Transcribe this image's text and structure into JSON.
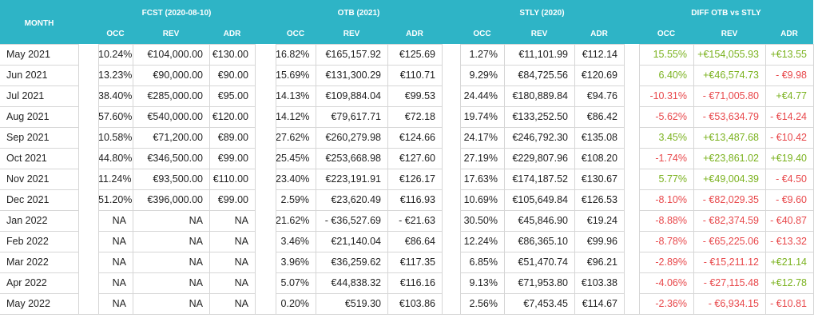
{
  "headers": {
    "month": "MONTH",
    "groups": [
      "FCST (2020-08-10)",
      "OTB (2021)",
      "STLY (2020)",
      "DIFF OTB vs STLY"
    ],
    "sub": [
      "OCC",
      "REV",
      "ADR"
    ]
  },
  "rows": [
    {
      "month": "May 2021",
      "fcst": [
        "10.24%",
        "€104,000.00",
        "€130.00"
      ],
      "otb": [
        "16.82%",
        "€165,157.92",
        "€125.69"
      ],
      "stly": [
        "1.27%",
        "€11,101.99",
        "€112.14"
      ],
      "diff": [
        "15.55%",
        "+€154,055.93",
        "+€13.55"
      ],
      "diff_sign": [
        "pos",
        "pos",
        "pos"
      ]
    },
    {
      "month": "Jun 2021",
      "fcst": [
        "13.23%",
        "€90,000.00",
        "€90.00"
      ],
      "otb": [
        "15.69%",
        "€131,300.29",
        "€110.71"
      ],
      "stly": [
        "9.29%",
        "€84,725.56",
        "€120.69"
      ],
      "diff": [
        "6.40%",
        "+€46,574.73",
        "- €9.98"
      ],
      "diff_sign": [
        "pos",
        "pos",
        "neg"
      ]
    },
    {
      "month": "Jul 2021",
      "fcst": [
        "38.40%",
        "€285,000.00",
        "€95.00"
      ],
      "otb": [
        "14.13%",
        "€109,884.04",
        "€99.53"
      ],
      "stly": [
        "24.44%",
        "€180,889.84",
        "€94.76"
      ],
      "diff": [
        "-10.31%",
        "- €71,005.80",
        "+€4.77"
      ],
      "diff_sign": [
        "neg",
        "neg",
        "pos"
      ]
    },
    {
      "month": "Aug 2021",
      "fcst": [
        "57.60%",
        "€540,000.00",
        "€120.00"
      ],
      "otb": [
        "14.12%",
        "€79,617.71",
        "€72.18"
      ],
      "stly": [
        "19.74%",
        "€133,252.50",
        "€86.42"
      ],
      "diff": [
        "-5.62%",
        "- €53,634.79",
        "- €14.24"
      ],
      "diff_sign": [
        "neg",
        "neg",
        "neg"
      ]
    },
    {
      "month": "Sep 2021",
      "fcst": [
        "10.58%",
        "€71,200.00",
        "€89.00"
      ],
      "otb": [
        "27.62%",
        "€260,279.98",
        "€124.66"
      ],
      "stly": [
        "24.17%",
        "€246,792.30",
        "€135.08"
      ],
      "diff": [
        "3.45%",
        "+€13,487.68",
        "- €10.42"
      ],
      "diff_sign": [
        "pos",
        "pos",
        "neg"
      ]
    },
    {
      "month": "Oct 2021",
      "fcst": [
        "44.80%",
        "€346,500.00",
        "€99.00"
      ],
      "otb": [
        "25.45%",
        "€253,668.98",
        "€127.60"
      ],
      "stly": [
        "27.19%",
        "€229,807.96",
        "€108.20"
      ],
      "diff": [
        "-1.74%",
        "+€23,861.02",
        "+€19.40"
      ],
      "diff_sign": [
        "neg",
        "pos",
        "pos"
      ]
    },
    {
      "month": "Nov 2021",
      "fcst": [
        "11.24%",
        "€93,500.00",
        "€110.00"
      ],
      "otb": [
        "23.40%",
        "€223,191.91",
        "€126.17"
      ],
      "stly": [
        "17.63%",
        "€174,187.52",
        "€130.67"
      ],
      "diff": [
        "5.77%",
        "+€49,004.39",
        "- €4.50"
      ],
      "diff_sign": [
        "pos",
        "pos",
        "neg"
      ]
    },
    {
      "month": "Dec 2021",
      "fcst": [
        "51.20%",
        "€396,000.00",
        "€99.00"
      ],
      "otb": [
        "2.59%",
        "€23,620.49",
        "€116.93"
      ],
      "stly": [
        "10.69%",
        "€105,649.84",
        "€126.53"
      ],
      "diff": [
        "-8.10%",
        "- €82,029.35",
        "- €9.60"
      ],
      "diff_sign": [
        "neg",
        "neg",
        "neg"
      ]
    },
    {
      "month": "Jan 2022",
      "fcst": [
        "NA",
        "NA",
        "NA"
      ],
      "otb": [
        "21.62%",
        "- €36,527.69",
        "- €21.63"
      ],
      "stly": [
        "30.50%",
        "€45,846.90",
        "€19.24"
      ],
      "diff": [
        "-8.88%",
        "- €82,374.59",
        "- €40.87"
      ],
      "diff_sign": [
        "neg",
        "neg",
        "neg"
      ]
    },
    {
      "month": "Feb 2022",
      "fcst": [
        "NA",
        "NA",
        "NA"
      ],
      "otb": [
        "3.46%",
        "€21,140.04",
        "€86.64"
      ],
      "stly": [
        "12.24%",
        "€86,365.10",
        "€99.96"
      ],
      "diff": [
        "-8.78%",
        "- €65,225.06",
        "- €13.32"
      ],
      "diff_sign": [
        "neg",
        "neg",
        "neg"
      ]
    },
    {
      "month": "Mar 2022",
      "fcst": [
        "NA",
        "NA",
        "NA"
      ],
      "otb": [
        "3.96%",
        "€36,259.62",
        "€117.35"
      ],
      "stly": [
        "6.85%",
        "€51,470.74",
        "€96.21"
      ],
      "diff": [
        "-2.89%",
        "- €15,211.12",
        "+€21.14"
      ],
      "diff_sign": [
        "neg",
        "neg",
        "pos"
      ]
    },
    {
      "month": "Apr 2022",
      "fcst": [
        "NA",
        "NA",
        "NA"
      ],
      "otb": [
        "5.07%",
        "€44,838.32",
        "€116.16"
      ],
      "stly": [
        "9.13%",
        "€71,953.80",
        "€103.38"
      ],
      "diff": [
        "-4.06%",
        "- €27,115.48",
        "+€12.78"
      ],
      "diff_sign": [
        "neg",
        "neg",
        "pos"
      ]
    },
    {
      "month": "May 2022",
      "fcst": [
        "NA",
        "NA",
        "NA"
      ],
      "otb": [
        "0.20%",
        "€519.30",
        "€103.86"
      ],
      "stly": [
        "2.56%",
        "€7,453.45",
        "€114.67"
      ],
      "diff": [
        "-2.36%",
        "- €6,934.15",
        "- €10.81"
      ],
      "diff_sign": [
        "neg",
        "neg",
        "neg"
      ]
    }
  ],
  "colors": {
    "header_bg": "#2eb4c6",
    "positive": "#7bb21f",
    "negative": "#e8484b"
  }
}
